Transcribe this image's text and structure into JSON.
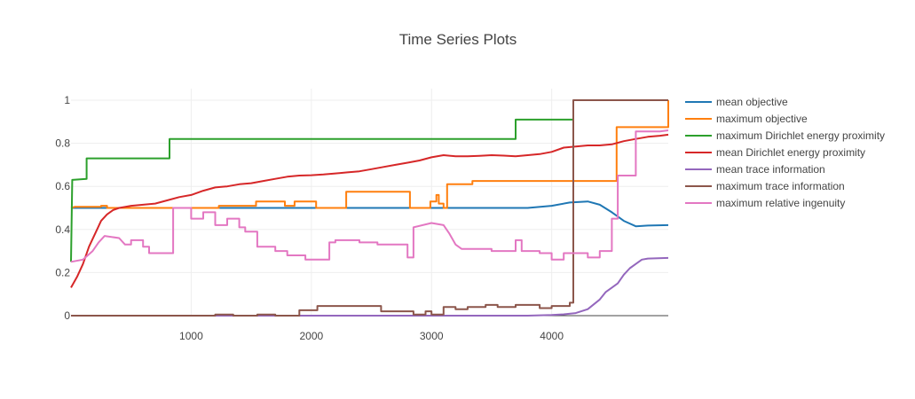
{
  "chart_data": {
    "type": "line",
    "title": "Time Series Plots",
    "xlim": [
      0,
      4970
    ],
    "ylim": [
      0,
      1.05
    ],
    "x_ticks": [
      1000,
      2000,
      3000,
      4000
    ],
    "y_ticks": [
      0,
      0.2,
      0.4,
      0.6,
      0.8,
      1
    ],
    "x_tick_labels": [
      "1000",
      "2000",
      "3000",
      "4000"
    ],
    "y_tick_labels": [
      "0",
      "0.2",
      "0.4",
      "0.6",
      "0.8",
      "1"
    ],
    "grid": true,
    "legend_position": "right",
    "series": [
      {
        "name": "mean objective",
        "color": "#1f77b4",
        "points": [
          [
            0,
            0.5
          ],
          [
            1000,
            0.5
          ],
          [
            2000,
            0.5
          ],
          [
            3000,
            0.5
          ],
          [
            3800,
            0.5
          ],
          [
            4000,
            0.51
          ],
          [
            4150,
            0.525
          ],
          [
            4300,
            0.53
          ],
          [
            4400,
            0.515
          ],
          [
            4500,
            0.48
          ],
          [
            4600,
            0.44
          ],
          [
            4700,
            0.415
          ],
          [
            4800,
            0.418
          ],
          [
            4970,
            0.42
          ]
        ]
      },
      {
        "name": "maximum objective",
        "color": "#ff7f0e",
        "points": [
          [
            0,
            0.5
          ],
          [
            30,
            0.505
          ],
          [
            250,
            0.505
          ],
          [
            250,
            0.51
          ],
          [
            300,
            0.51
          ],
          [
            300,
            0.5
          ],
          [
            1230,
            0.5
          ],
          [
            1230,
            0.51
          ],
          [
            1540,
            0.51
          ],
          [
            1540,
            0.53
          ],
          [
            1780,
            0.53
          ],
          [
            1780,
            0.51
          ],
          [
            1860,
            0.51
          ],
          [
            1860,
            0.53
          ],
          [
            2040,
            0.53
          ],
          [
            2040,
            0.5
          ],
          [
            2290,
            0.5
          ],
          [
            2290,
            0.575
          ],
          [
            2820,
            0.575
          ],
          [
            2820,
            0.5
          ],
          [
            2990,
            0.5
          ],
          [
            2990,
            0.53
          ],
          [
            3040,
            0.53
          ],
          [
            3040,
            0.56
          ],
          [
            3060,
            0.56
          ],
          [
            3060,
            0.52
          ],
          [
            3100,
            0.52
          ],
          [
            3100,
            0.5
          ],
          [
            3130,
            0.5
          ],
          [
            3130,
            0.61
          ],
          [
            3340,
            0.61
          ],
          [
            3340,
            0.625
          ],
          [
            4540,
            0.625
          ],
          [
            4540,
            0.875
          ],
          [
            4970,
            0.875
          ],
          [
            4970,
            1.0
          ]
        ]
      },
      {
        "name": "maximum Dirichlet energy proximity",
        "color": "#2ca02c",
        "points": [
          [
            0,
            0.25
          ],
          [
            10,
            0.63
          ],
          [
            130,
            0.635
          ],
          [
            130,
            0.73
          ],
          [
            820,
            0.73
          ],
          [
            820,
            0.82
          ],
          [
            3700,
            0.82
          ],
          [
            3700,
            0.91
          ],
          [
            4180,
            0.91
          ]
        ]
      },
      {
        "name": "mean Dirichlet energy proximity",
        "color": "#d62728",
        "points": [
          [
            0,
            0.13
          ],
          [
            50,
            0.18
          ],
          [
            100,
            0.24
          ],
          [
            150,
            0.32
          ],
          [
            200,
            0.38
          ],
          [
            250,
            0.44
          ],
          [
            300,
            0.47
          ],
          [
            350,
            0.49
          ],
          [
            400,
            0.5
          ],
          [
            450,
            0.505
          ],
          [
            500,
            0.51
          ],
          [
            600,
            0.515
          ],
          [
            700,
            0.52
          ],
          [
            800,
            0.535
          ],
          [
            900,
            0.55
          ],
          [
            1000,
            0.56
          ],
          [
            1100,
            0.58
          ],
          [
            1200,
            0.595
          ],
          [
            1300,
            0.6
          ],
          [
            1400,
            0.61
          ],
          [
            1500,
            0.615
          ],
          [
            1600,
            0.625
          ],
          [
            1700,
            0.635
          ],
          [
            1800,
            0.645
          ],
          [
            1900,
            0.65
          ],
          [
            2000,
            0.652
          ],
          [
            2100,
            0.655
          ],
          [
            2200,
            0.66
          ],
          [
            2300,
            0.665
          ],
          [
            2400,
            0.67
          ],
          [
            2500,
            0.68
          ],
          [
            2600,
            0.69
          ],
          [
            2700,
            0.7
          ],
          [
            2800,
            0.71
          ],
          [
            2900,
            0.72
          ],
          [
            3000,
            0.735
          ],
          [
            3100,
            0.745
          ],
          [
            3200,
            0.74
          ],
          [
            3300,
            0.74
          ],
          [
            3400,
            0.742
          ],
          [
            3500,
            0.745
          ],
          [
            3600,
            0.743
          ],
          [
            3700,
            0.74
          ],
          [
            3800,
            0.745
          ],
          [
            3900,
            0.75
          ],
          [
            4000,
            0.76
          ],
          [
            4100,
            0.78
          ],
          [
            4200,
            0.785
          ],
          [
            4300,
            0.79
          ],
          [
            4400,
            0.79
          ],
          [
            4500,
            0.795
          ],
          [
            4600,
            0.81
          ],
          [
            4700,
            0.82
          ],
          [
            4800,
            0.83
          ],
          [
            4900,
            0.835
          ],
          [
            4970,
            0.84
          ]
        ]
      },
      {
        "name": "mean trace information",
        "color": "#9467bd",
        "points": [
          [
            0,
            0.0
          ],
          [
            1000,
            0.0
          ],
          [
            2000,
            0.0
          ],
          [
            3000,
            0.0
          ],
          [
            3800,
            0.0
          ],
          [
            4000,
            0.003
          ],
          [
            4100,
            0.006
          ],
          [
            4200,
            0.012
          ],
          [
            4300,
            0.03
          ],
          [
            4400,
            0.075
          ],
          [
            4450,
            0.11
          ],
          [
            4500,
            0.13
          ],
          [
            4550,
            0.15
          ],
          [
            4600,
            0.19
          ],
          [
            4650,
            0.22
          ],
          [
            4700,
            0.24
          ],
          [
            4750,
            0.26
          ],
          [
            4800,
            0.265
          ],
          [
            4970,
            0.268
          ]
        ]
      },
      {
        "name": "maximum trace information",
        "color": "#8c564b",
        "points": [
          [
            0,
            0.0
          ],
          [
            1200,
            0.0
          ],
          [
            1200,
            0.005
          ],
          [
            1350,
            0.005
          ],
          [
            1350,
            0.0
          ],
          [
            1550,
            0.0
          ],
          [
            1550,
            0.005
          ],
          [
            1700,
            0.005
          ],
          [
            1700,
            0.0
          ],
          [
            1900,
            0.0
          ],
          [
            1900,
            0.025
          ],
          [
            2050,
            0.025
          ],
          [
            2050,
            0.045
          ],
          [
            2580,
            0.045
          ],
          [
            2580,
            0.02
          ],
          [
            2850,
            0.02
          ],
          [
            2850,
            0.005
          ],
          [
            2950,
            0.005
          ],
          [
            2950,
            0.02
          ],
          [
            3000,
            0.02
          ],
          [
            3000,
            0.005
          ],
          [
            3100,
            0.005
          ],
          [
            3100,
            0.04
          ],
          [
            3200,
            0.04
          ],
          [
            3200,
            0.03
          ],
          [
            3300,
            0.03
          ],
          [
            3300,
            0.04
          ],
          [
            3450,
            0.04
          ],
          [
            3450,
            0.05
          ],
          [
            3550,
            0.05
          ],
          [
            3550,
            0.04
          ],
          [
            3700,
            0.04
          ],
          [
            3700,
            0.05
          ],
          [
            3900,
            0.05
          ],
          [
            3900,
            0.035
          ],
          [
            4000,
            0.035
          ],
          [
            4000,
            0.045
          ],
          [
            4150,
            0.045
          ],
          [
            4150,
            0.06
          ],
          [
            4180,
            0.06
          ],
          [
            4180,
            1.0
          ],
          [
            4970,
            1.0
          ]
        ]
      },
      {
        "name": "maximum relative ingenuity",
        "color": "#e377c2",
        "points": [
          [
            0,
            0.25
          ],
          [
            100,
            0.26
          ],
          [
            180,
            0.3
          ],
          [
            230,
            0.34
          ],
          [
            280,
            0.37
          ],
          [
            400,
            0.36
          ],
          [
            450,
            0.33
          ],
          [
            500,
            0.33
          ],
          [
            500,
            0.35
          ],
          [
            600,
            0.35
          ],
          [
            600,
            0.32
          ],
          [
            650,
            0.32
          ],
          [
            650,
            0.29
          ],
          [
            850,
            0.29
          ],
          [
            850,
            0.5
          ],
          [
            1000,
            0.5
          ],
          [
            1000,
            0.45
          ],
          [
            1100,
            0.45
          ],
          [
            1100,
            0.48
          ],
          [
            1200,
            0.48
          ],
          [
            1200,
            0.42
          ],
          [
            1300,
            0.42
          ],
          [
            1300,
            0.45
          ],
          [
            1400,
            0.45
          ],
          [
            1400,
            0.41
          ],
          [
            1450,
            0.41
          ],
          [
            1450,
            0.39
          ],
          [
            1550,
            0.39
          ],
          [
            1550,
            0.32
          ],
          [
            1700,
            0.32
          ],
          [
            1700,
            0.3
          ],
          [
            1800,
            0.3
          ],
          [
            1800,
            0.28
          ],
          [
            1950,
            0.28
          ],
          [
            1950,
            0.26
          ],
          [
            2150,
            0.26
          ],
          [
            2150,
            0.34
          ],
          [
            2200,
            0.34
          ],
          [
            2200,
            0.35
          ],
          [
            2400,
            0.35
          ],
          [
            2400,
            0.34
          ],
          [
            2550,
            0.34
          ],
          [
            2550,
            0.33
          ],
          [
            2800,
            0.33
          ],
          [
            2800,
            0.27
          ],
          [
            2850,
            0.27
          ],
          [
            2850,
            0.41
          ],
          [
            3000,
            0.43
          ],
          [
            3100,
            0.42
          ],
          [
            3150,
            0.38
          ],
          [
            3200,
            0.33
          ],
          [
            3250,
            0.31
          ],
          [
            3500,
            0.31
          ],
          [
            3500,
            0.3
          ],
          [
            3700,
            0.3
          ],
          [
            3700,
            0.35
          ],
          [
            3750,
            0.35
          ],
          [
            3750,
            0.3
          ],
          [
            3900,
            0.3
          ],
          [
            3900,
            0.29
          ],
          [
            4000,
            0.29
          ],
          [
            4000,
            0.26
          ],
          [
            4100,
            0.26
          ],
          [
            4100,
            0.29
          ],
          [
            4300,
            0.29
          ],
          [
            4300,
            0.27
          ],
          [
            4400,
            0.27
          ],
          [
            4400,
            0.3
          ],
          [
            4500,
            0.3
          ],
          [
            4500,
            0.45
          ],
          [
            4550,
            0.45
          ],
          [
            4550,
            0.65
          ],
          [
            4700,
            0.65
          ],
          [
            4700,
            0.855
          ],
          [
            4900,
            0.855
          ],
          [
            4970,
            0.86
          ]
        ]
      }
    ]
  }
}
